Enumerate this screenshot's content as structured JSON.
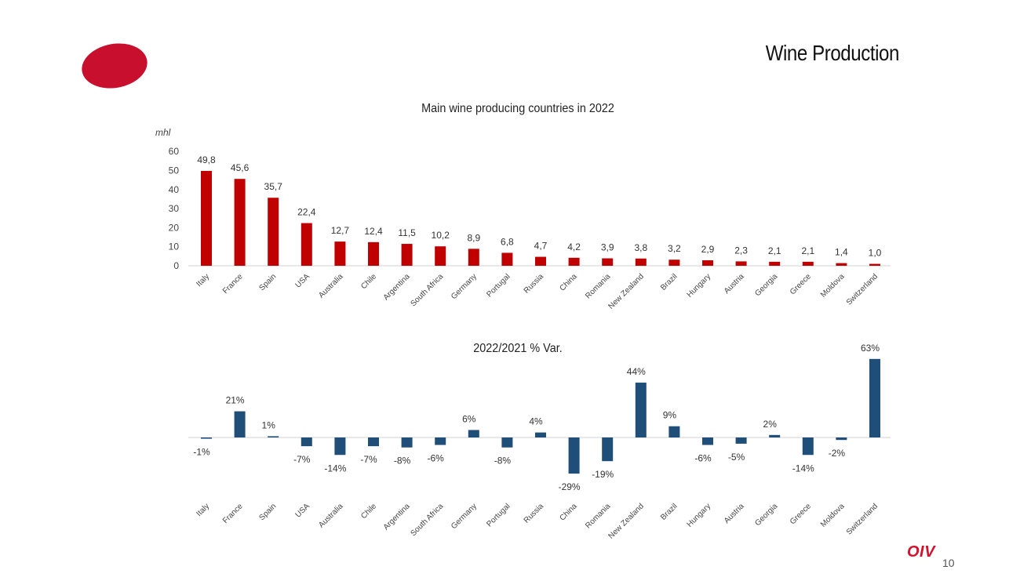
{
  "slide": {
    "title": "Wine Production",
    "page_number": "10",
    "logo_text": "OIV"
  },
  "colors": {
    "production_bar": "#c00000",
    "variation_bar": "#1f4e79",
    "brand_red": "#c8102e"
  },
  "chart_data": [
    {
      "type": "bar",
      "title": "Main wine producing countries in 2022",
      "ylabel": "mhl",
      "ylim": [
        0,
        60
      ],
      "yticks": [
        0,
        10,
        20,
        30,
        40,
        50,
        60
      ],
      "grid": false,
      "categories": [
        "Italy",
        "France",
        "Spain",
        "USA",
        "Australia",
        "Chile",
        "Argentina",
        "South Africa",
        "Germany",
        "Portugal",
        "Russia",
        "China",
        "Romania",
        "New Zealand",
        "Brazil",
        "Hungary",
        "Austria",
        "Georgia",
        "Greece",
        "Moldova",
        "Switzerland"
      ],
      "values": [
        49.8,
        45.6,
        35.7,
        22.4,
        12.7,
        12.4,
        11.5,
        10.2,
        8.9,
        6.8,
        4.7,
        4.2,
        3.9,
        3.8,
        3.2,
        2.9,
        2.3,
        2.1,
        2.1,
        1.4,
        1.0
      ],
      "data_labels": [
        "49,8",
        "45,6",
        "35,7",
        "22,4",
        "12,7",
        "12,4",
        "11,5",
        "10,2",
        "8,9",
        "6,8",
        "4,7",
        "4,2",
        "3,9",
        "3,8",
        "3,2",
        "2,9",
        "2,3",
        "2,1",
        "2,1",
        "1,4",
        "1,0"
      ]
    },
    {
      "type": "bar",
      "title": "2022/2021 % Var.",
      "ylabel": "",
      "ylim": [
        -29,
        63
      ],
      "grid": false,
      "categories": [
        "Italy",
        "France",
        "Spain",
        "USA",
        "Australia",
        "Chile",
        "Argentina",
        "South Africa",
        "Germany",
        "Portugal",
        "Russia",
        "China",
        "Romania",
        "New Zealand",
        "Brazil",
        "Hungary",
        "Austria",
        "Georgia",
        "Greece",
        "Moldova",
        "Switzerland"
      ],
      "values": [
        -1,
        21,
        1,
        -7,
        -14,
        -7,
        -8,
        -6,
        6,
        -8,
        4,
        -29,
        -19,
        44,
        9,
        -6,
        -5,
        2,
        -14,
        -2,
        63
      ],
      "data_labels": [
        "-1%",
        "21%",
        "1%",
        "-7%",
        "-14%",
        "-7%",
        "-8%",
        "-6%",
        "6%",
        "-8%",
        "4%",
        "-29%",
        "-19%",
        "44%",
        "9%",
        "-6%",
        "-5%",
        "2%",
        "-14%",
        "-2%",
        "63%"
      ]
    }
  ]
}
